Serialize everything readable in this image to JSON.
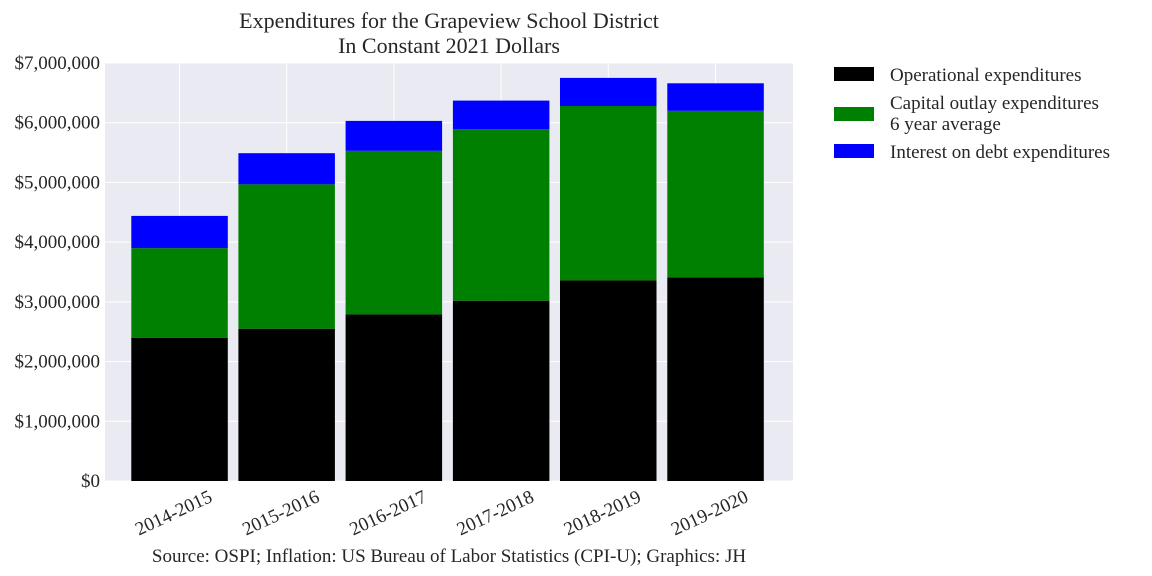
{
  "chart_data": {
    "type": "bar",
    "stacked": true,
    "title": "Expenditures for the Grapeview School District",
    "subtitle": "In Constant 2021 Dollars",
    "xlabel": "",
    "ylabel": "",
    "categories": [
      "2014-2015",
      "2015-2016",
      "2016-2017",
      "2017-2018",
      "2018-2019",
      "2019-2020"
    ],
    "series": [
      {
        "name": "Operational expenditures",
        "color": "#000000",
        "values": [
          2400000,
          2550000,
          2790000,
          3020000,
          3360000,
          3410000
        ]
      },
      {
        "name_lines": [
          "Capital outlay expenditures",
          "6 year average"
        ],
        "color": "#008000",
        "values": [
          1500000,
          2420000,
          2740000,
          2870000,
          2920000,
          2790000
        ]
      },
      {
        "name": "Interest on debt expenditures",
        "color": "#0000ff",
        "values": [
          540000,
          520000,
          500000,
          480000,
          470000,
          460000
        ]
      }
    ],
    "ylim": [
      0,
      7000000
    ],
    "yticks": [
      0,
      1000000,
      2000000,
      3000000,
      4000000,
      5000000,
      6000000,
      7000000
    ],
    "ytick_labels": [
      "$0",
      "$1,000,000",
      "$2,000,000",
      "$3,000,000",
      "$4,000,000",
      "$5,000,000",
      "$6,000,000",
      "$7,000,000"
    ],
    "grid": true,
    "legend_position": "outside-right"
  },
  "source_note": "Source: OSPI; Inflation: US Bureau of Labor Statistics (CPI-U); Graphics: JH"
}
